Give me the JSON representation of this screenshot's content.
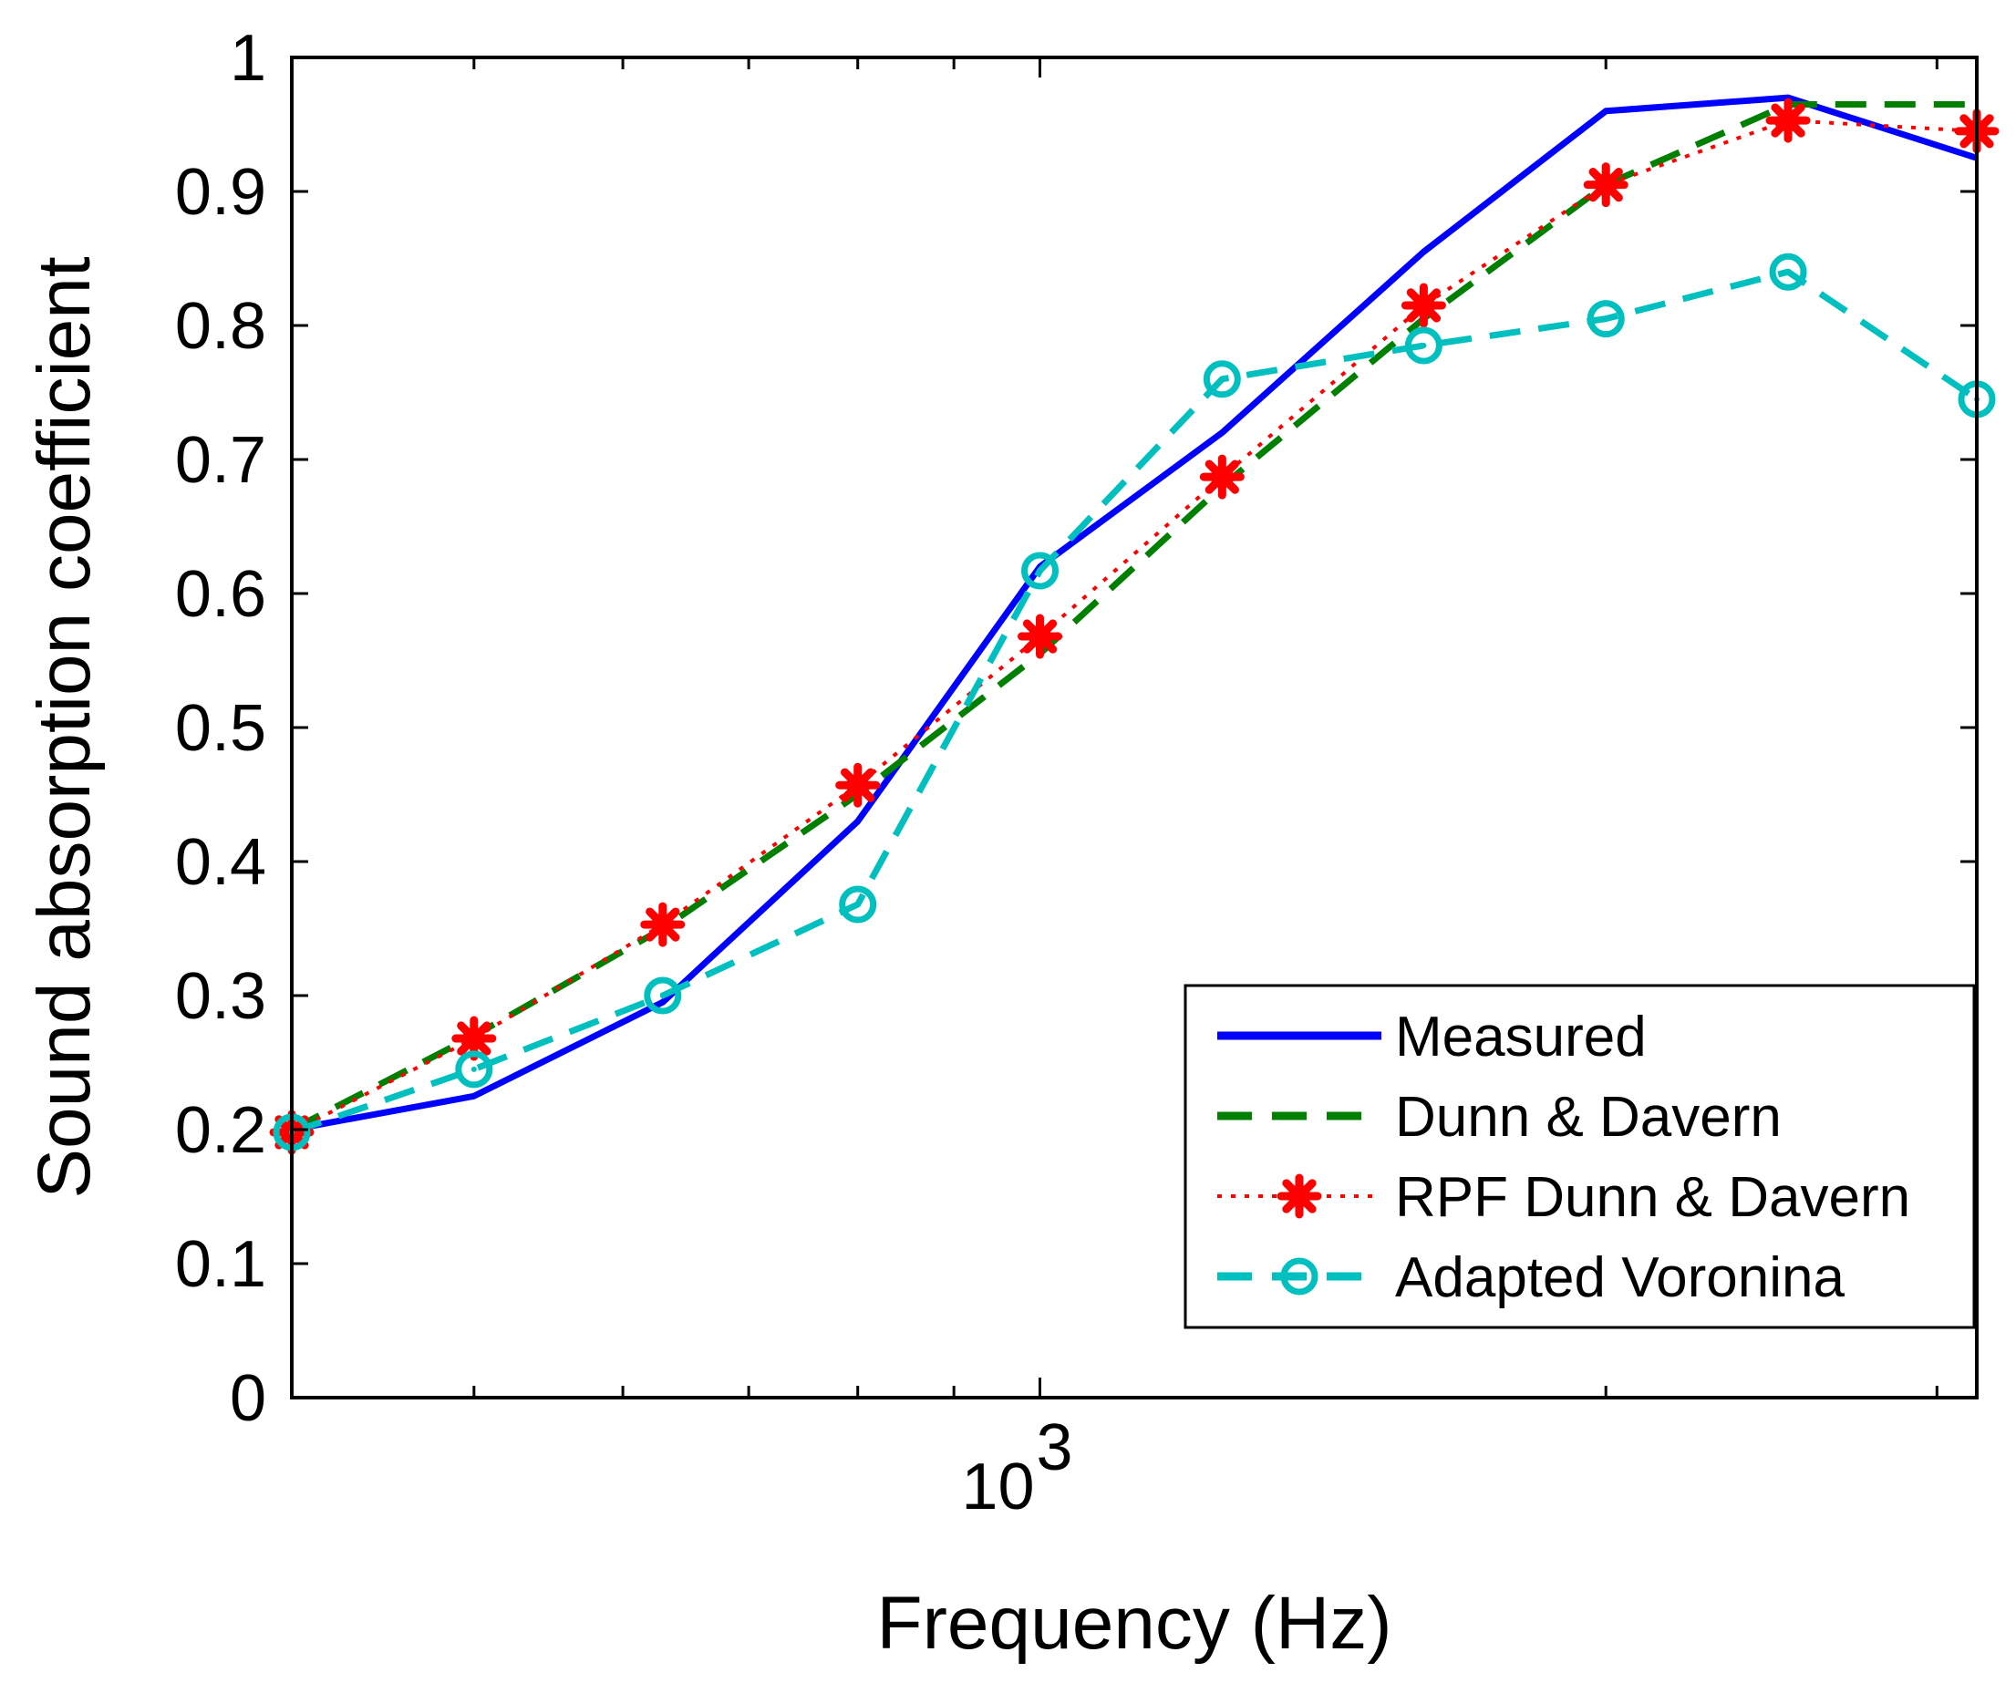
{
  "chart_data": {
    "type": "line",
    "xscale": "log",
    "xlabel": "Frequency (Hz)",
    "ylabel": "Sound absorption coefficient",
    "x": [
      400,
      500,
      630,
      800,
      1000,
      1250,
      1600,
      2000,
      2500,
      3150
    ],
    "xlim": [
      400,
      3150
    ],
    "ylim": [
      0,
      1
    ],
    "yticks": [
      "0",
      "0.1",
      "0.2",
      "0.3",
      "0.4",
      "0.5",
      "0.6",
      "0.7",
      "0.8",
      "0.9",
      "1"
    ],
    "xticks": [
      {
        "base": "10",
        "exp": "3",
        "value": 1000
      }
    ],
    "grid": false,
    "legend_position": "bottom-right",
    "series": [
      {
        "name": "Measured",
        "color": "#0000ff",
        "style": "solid",
        "marker": "none",
        "values": [
          0.2,
          0.225,
          0.295,
          0.43,
          0.62,
          0.72,
          0.855,
          0.96,
          0.97,
          0.925
        ]
      },
      {
        "name": "Dunn & Davern",
        "color": "#007f00",
        "style": "dashed",
        "marker": "none",
        "values": [
          0.2,
          0.27,
          0.35,
          0.45,
          0.555,
          0.68,
          0.805,
          0.905,
          0.965,
          0.965
        ]
      },
      {
        "name": "RPF Dunn & Davern",
        "color": "#ff0000",
        "style": "dotted",
        "marker": "asterisk",
        "values": [
          0.198,
          0.268,
          0.353,
          0.457,
          0.568,
          0.687,
          0.815,
          0.905,
          0.953,
          0.945
        ]
      },
      {
        "name": "Adapted Voronina",
        "color": "#00bfbf",
        "style": "dashed",
        "marker": "circle",
        "values": [
          0.198,
          0.245,
          0.3,
          0.368,
          0.617,
          0.76,
          0.785,
          0.805,
          0.84,
          0.745
        ]
      }
    ]
  }
}
